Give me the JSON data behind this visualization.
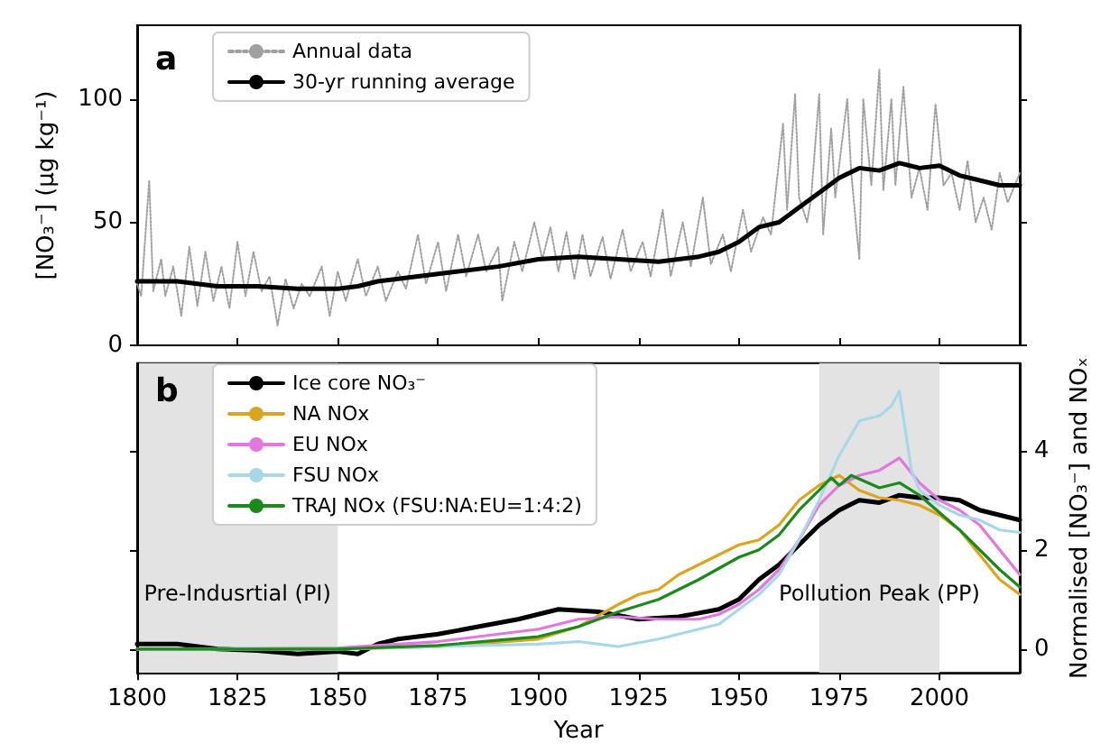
{
  "chart_data": [
    {
      "type": "line",
      "ylabel": "[NO₃⁻] (µg kg⁻¹)",
      "annotations": [
        "a"
      ],
      "xlim": [
        1800,
        2020
      ],
      "xticks": [
        1800,
        1825,
        1850,
        1875,
        1900,
        1925,
        1950,
        1975,
        2000
      ],
      "ylim": [
        0,
        130
      ],
      "yticks": [
        0,
        50,
        100
      ],
      "tick_labels": "y",
      "legend": "top left",
      "grid": false,
      "series": [
        {
          "name": "Annual data",
          "color": "#a0a0a0",
          "line_style": "dotted",
          "x": [
            1800,
            1801,
            1803,
            1804,
            1806,
            1807,
            1809,
            1811,
            1813,
            1815,
            1817,
            1819,
            1821,
            1823,
            1825,
            1827,
            1829,
            1831,
            1833,
            1835,
            1837,
            1839,
            1841,
            1843,
            1846,
            1848,
            1850,
            1852,
            1855,
            1857,
            1860,
            1862,
            1865,
            1867,
            1870,
            1872,
            1875,
            1877,
            1880,
            1882,
            1885,
            1887,
            1890,
            1891,
            1894,
            1896,
            1899,
            1901,
            1903,
            1905,
            1907,
            1909,
            1911,
            1913,
            1916,
            1918,
            1921,
            1923,
            1926,
            1928,
            1931,
            1933,
            1936,
            1938,
            1941,
            1943,
            1946,
            1948,
            1951,
            1953,
            1956,
            1958,
            1961,
            1962,
            1964,
            1965,
            1967,
            1968,
            1970,
            1971,
            1973,
            1974,
            1977,
            1978,
            1980,
            1981,
            1983,
            1985,
            1986,
            1988,
            1989,
            1991,
            1993,
            1995,
            1997,
            1999,
            2001,
            2003,
            2005,
            2007,
            2009,
            2011,
            2013,
            2015,
            2017,
            2020
          ],
          "values": [
            25,
            20,
            67,
            22,
            35,
            20,
            32,
            12,
            40,
            16,
            38,
            18,
            32,
            15,
            42,
            20,
            38,
            22,
            28,
            8,
            27,
            15,
            25,
            20,
            32,
            12,
            30,
            18,
            35,
            20,
            32,
            18,
            30,
            23,
            45,
            25,
            42,
            22,
            45,
            28,
            45,
            30,
            40,
            18,
            42,
            30,
            50,
            35,
            48,
            30,
            46,
            27,
            45,
            28,
            44,
            27,
            47,
            30,
            42,
            28,
            55,
            28,
            50,
            32,
            60,
            33,
            45,
            30,
            55,
            38,
            52,
            45,
            90,
            55,
            102,
            60,
            50,
            60,
            102,
            45,
            88,
            60,
            100,
            70,
            35,
            100,
            65,
            112,
            63,
            100,
            65,
            105,
            60,
            72,
            55,
            98,
            65,
            70,
            55,
            75,
            50,
            60,
            47,
            70,
            58,
            70
          ]
        },
        {
          "name": "30-yr running average",
          "color": "#000000",
          "x": [
            1800,
            1810,
            1820,
            1830,
            1840,
            1850,
            1855,
            1860,
            1870,
            1880,
            1890,
            1900,
            1910,
            1920,
            1930,
            1940,
            1945,
            1950,
            1955,
            1960,
            1965,
            1970,
            1975,
            1980,
            1985,
            1990,
            1995,
            2000,
            2005,
            2010,
            2015,
            2020
          ],
          "values": [
            26,
            26,
            24,
            24,
            23,
            23,
            24,
            26,
            28,
            30,
            32,
            35,
            36,
            35,
            34,
            36,
            38,
            42,
            48,
            50,
            56,
            62,
            68,
            72,
            71,
            74,
            72,
            73,
            69,
            67,
            65,
            65
          ]
        }
      ]
    },
    {
      "type": "line",
      "xlabel": "Year",
      "y2label": "Normalised [NO₃⁻] and NOₓ",
      "annotations": [
        "b"
      ],
      "xlim": [
        1800,
        2020
      ],
      "xticks": [
        1800,
        1825,
        1850,
        1875,
        1900,
        1925,
        1950,
        1975,
        2000
      ],
      "y2lim": [
        -0.48,
        5.76
      ],
      "y2ticks": [
        0,
        2,
        4
      ],
      "legend": "top left",
      "grid": false,
      "bands": [
        {
          "axis": "x",
          "from": 1800,
          "to": 1850,
          "label": "Pre-Indusrtial (PI)",
          "color": "#e3e3e3"
        },
        {
          "axis": "x",
          "from": 1970,
          "to": 2000,
          "label": "Pollution Peak (PP)",
          "color": "#e3e3e3"
        }
      ],
      "series": [
        {
          "name": "Ice core NO₃⁻",
          "color": "#000000",
          "axis": "y2",
          "x": [
            1800,
            1810,
            1815,
            1820,
            1830,
            1840,
            1850,
            1855,
            1860,
            1865,
            1875,
            1885,
            1895,
            1905,
            1915,
            1925,
            1935,
            1945,
            1950,
            1955,
            1960,
            1965,
            1970,
            1975,
            1980,
            1985,
            1990,
            1995,
            2000,
            2005,
            2010,
            2015,
            2020
          ],
          "values": [
            0.1,
            0.1,
            0.05,
            0,
            -0.03,
            -0.1,
            -0.05,
            -0.1,
            0.1,
            0.2,
            0.3,
            0.45,
            0.6,
            0.8,
            0.75,
            0.6,
            0.65,
            0.8,
            1,
            1.4,
            1.7,
            2.1,
            2.5,
            2.8,
            3,
            2.95,
            3.1,
            3.05,
            3.05,
            3,
            2.8,
            2.7,
            2.6
          ]
        },
        {
          "name": "NA NOx",
          "color": "#dba520",
          "axis": "y2",
          "x": [
            1800,
            1850,
            1875,
            1900,
            1910,
            1920,
            1925,
            1930,
            1935,
            1940,
            1945,
            1950,
            1955,
            1960,
            1965,
            1970,
            1975,
            1980,
            1985,
            1990,
            1995,
            2000,
            2005,
            2010,
            2015,
            2020
          ],
          "values": [
            0,
            0,
            0.05,
            0.2,
            0.45,
            0.9,
            1.1,
            1.2,
            1.5,
            1.7,
            1.9,
            2.1,
            2.2,
            2.5,
            3,
            3.3,
            3.5,
            3.2,
            3.05,
            3,
            2.9,
            2.7,
            2.4,
            1.9,
            1.4,
            1.1
          ]
        },
        {
          "name": "EU NOx",
          "color": "#e377e0",
          "axis": "y2",
          "x": [
            1800,
            1850,
            1875,
            1900,
            1910,
            1920,
            1930,
            1940,
            1945,
            1950,
            1955,
            1960,
            1965,
            1970,
            1975,
            1980,
            1985,
            1990,
            1995,
            2000,
            2005,
            2010,
            2015,
            2020
          ],
          "values": [
            0,
            0.02,
            0.15,
            0.4,
            0.6,
            0.65,
            0.6,
            0.6,
            0.7,
            0.9,
            1.2,
            1.6,
            2.2,
            2.9,
            3.3,
            3.5,
            3.6,
            3.85,
            3.35,
            3,
            2.8,
            2.5,
            2,
            1.5
          ]
        },
        {
          "name": "FSU NOx",
          "color": "#a8d8e8",
          "axis": "y2",
          "x": [
            1800,
            1850,
            1900,
            1910,
            1920,
            1930,
            1940,
            1945,
            1950,
            1955,
            1960,
            1965,
            1970,
            1975,
            1980,
            1985,
            1988,
            1990,
            1993,
            1995,
            2000,
            2005,
            2010,
            2015,
            2020
          ],
          "values": [
            0,
            0,
            0.1,
            0.15,
            0.05,
            0.2,
            0.4,
            0.5,
            0.8,
            1.1,
            1.5,
            2.2,
            3,
            3.9,
            4.6,
            4.7,
            4.9,
            5.2,
            3.6,
            3.2,
            2.9,
            2.7,
            2.6,
            2.4,
            2.35
          ]
        },
        {
          "name": "TRAJ NOx (FSU:NA:EU=1:4:2)",
          "color": "#1a8a1a",
          "axis": "y2",
          "x": [
            1800,
            1850,
            1875,
            1900,
            1910,
            1920,
            1930,
            1940,
            1950,
            1955,
            1960,
            1965,
            1970,
            1973,
            1975,
            1978,
            1985,
            1990,
            1995,
            2000,
            2005,
            2010,
            2015,
            2020
          ],
          "values": [
            0,
            0,
            0.07,
            0.25,
            0.45,
            0.75,
            1,
            1.4,
            1.85,
            2,
            2.3,
            2.8,
            3.2,
            3.45,
            3.3,
            3.5,
            3.25,
            3.35,
            3.1,
            2.75,
            2.4,
            2,
            1.6,
            1.25
          ]
        }
      ]
    }
  ]
}
